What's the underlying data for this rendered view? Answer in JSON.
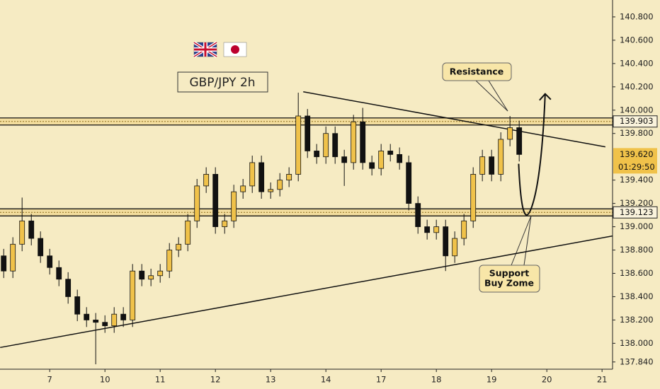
{
  "chart_data": {
    "type": "candlestick",
    "title": "GBP/JPY 2h",
    "x": [
      -0.833,
      -0.667,
      -0.5,
      -0.333,
      -0.167,
      0,
      0.167,
      0.333,
      0.5,
      0.667,
      0.833,
      1,
      1.167,
      1.333,
      1.5,
      1.667,
      1.833,
      2,
      2.167,
      2.333,
      2.5,
      2.667,
      2.833,
      3,
      3.167,
      3.333,
      3.5,
      3.667,
      3.833,
      4,
      4.167,
      4.333,
      4.5,
      4.667,
      4.833,
      5,
      5.167,
      5.333,
      5.5,
      5.667,
      5.833,
      6,
      6.167,
      6.333,
      6.5,
      6.667,
      6.833,
      7,
      7.167,
      7.333,
      7.5,
      7.667,
      7.833,
      8,
      8.167,
      8.333,
      8.5
    ],
    "open": [
      138.75,
      138.62,
      138.85,
      139.05,
      138.9,
      138.75,
      138.65,
      138.55,
      138.4,
      138.25,
      138.2,
      138.18,
      138.15,
      138.25,
      138.2,
      138.62,
      138.55,
      138.58,
      138.62,
      138.8,
      138.85,
      139.05,
      139.35,
      139.45,
      139.0,
      139.05,
      139.3,
      139.35,
      139.55,
      139.3,
      139.32,
      139.4,
      139.45,
      139.95,
      139.65,
      139.6,
      139.8,
      139.6,
      139.55,
      139.9,
      139.55,
      139.5,
      139.65,
      139.62,
      139.55,
      139.2,
      139.0,
      138.95,
      139.0,
      138.75,
      138.9,
      139.05,
      139.45,
      139.6,
      139.45,
      139.75,
      139.85
    ],
    "close": [
      138.62,
      138.85,
      139.05,
      138.9,
      138.75,
      138.65,
      138.55,
      138.4,
      138.25,
      138.2,
      138.18,
      138.15,
      138.25,
      138.2,
      138.62,
      138.55,
      138.58,
      138.62,
      138.8,
      138.85,
      139.05,
      139.35,
      139.45,
      139.0,
      139.05,
      139.3,
      139.35,
      139.55,
      139.3,
      139.32,
      139.4,
      139.45,
      139.95,
      139.65,
      139.6,
      139.8,
      139.6,
      139.55,
      139.9,
      139.55,
      139.5,
      139.65,
      139.62,
      139.55,
      139.2,
      139.0,
      138.95,
      139.0,
      138.75,
      138.9,
      139.05,
      139.45,
      139.6,
      139.45,
      139.75,
      139.85,
      139.62
    ],
    "high": [
      138.81,
      138.91,
      139.25,
      139.11,
      138.96,
      138.81,
      138.71,
      138.61,
      138.46,
      138.31,
      138.26,
      138.24,
      138.31,
      138.31,
      138.68,
      138.68,
      138.64,
      138.68,
      138.86,
      138.91,
      139.11,
      139.41,
      139.51,
      139.51,
      139.11,
      139.36,
      139.41,
      139.61,
      139.61,
      139.38,
      139.46,
      139.51,
      140.15,
      140.01,
      139.71,
      139.86,
      139.86,
      139.66,
      139.96,
      140.02,
      139.61,
      139.71,
      139.71,
      139.68,
      139.61,
      139.26,
      139.06,
      139.06,
      139.06,
      138.96,
      139.11,
      139.51,
      139.66,
      139.66,
      139.81,
      139.95,
      139.91
    ],
    "low": [
      138.56,
      138.56,
      138.79,
      138.84,
      138.69,
      138.59,
      138.49,
      138.34,
      138.19,
      138.14,
      137.82,
      138.09,
      138.09,
      138.14,
      138.14,
      138.49,
      138.49,
      138.52,
      138.56,
      138.74,
      138.79,
      138.99,
      139.29,
      138.94,
      138.94,
      138.99,
      139.24,
      139.29,
      139.24,
      139.24,
      139.26,
      139.34,
      139.39,
      139.59,
      139.54,
      139.54,
      139.54,
      139.35,
      139.49,
      139.49,
      139.44,
      139.44,
      139.56,
      139.49,
      139.14,
      138.94,
      138.89,
      138.89,
      138.62,
      138.69,
      138.84,
      138.99,
      139.39,
      139.39,
      139.39,
      139.69,
      139.56
    ],
    "up_color": "#f0c24a",
    "down_color": "#111111",
    "xlim": [
      -0.9,
      10.19
    ],
    "ylim": [
      137.79,
      140.945
    ],
    "xticks": [
      {
        "value": 0,
        "label": "7"
      },
      {
        "value": 1,
        "label": "10"
      },
      {
        "value": 2,
        "label": "11"
      },
      {
        "value": 3,
        "label": "12"
      },
      {
        "value": 4,
        "label": "13"
      },
      {
        "value": 5,
        "label": "14"
      },
      {
        "value": 6,
        "label": "17"
      },
      {
        "value": 7,
        "label": "18"
      },
      {
        "value": 8,
        "label": "19"
      },
      {
        "value": 9,
        "label": "20"
      },
      {
        "value": 10,
        "label": "21"
      }
    ],
    "yticks": [
      {
        "value": 140.8,
        "label": "140.800"
      },
      {
        "value": 140.6,
        "label": "140.600"
      },
      {
        "value": 140.4,
        "label": "140.400"
      },
      {
        "value": 140.2,
        "label": "140.200"
      },
      {
        "value": 140.0,
        "label": "140.000"
      },
      {
        "value": 139.8,
        "label": "139.800"
      },
      {
        "value": 139.4,
        "label": "139.400"
      },
      {
        "value": 139.2,
        "label": "139.200"
      },
      {
        "value": 139.0,
        "label": "139.000"
      },
      {
        "value": 138.8,
        "label": "138.800"
      },
      {
        "value": 138.6,
        "label": "138.600"
      },
      {
        "value": 138.4,
        "label": "138.400"
      },
      {
        "value": 138.2,
        "label": "138.200"
      },
      {
        "value": 138.0,
        "label": "138.000"
      },
      {
        "value": 137.84,
        "label": "137.840"
      }
    ],
    "levels": [
      {
        "value": 139.903,
        "label": "139.903"
      },
      {
        "value": 139.123,
        "label": "139.123"
      }
    ],
    "last_price": {
      "value": 139.62,
      "label": "139.620",
      "countdown": "01:29:50"
    },
    "trendlines": [
      {
        "x": [
          4.59,
          10.06
        ],
        "y": [
          140.158,
          139.685
        ]
      },
      {
        "x": [
          -0.897,
          10.19
        ],
        "y": [
          137.964,
          138.921
        ]
      }
    ],
    "projection": {
      "x": [
        8.49,
        8.65,
        8.97
      ],
      "y": [
        139.54,
        139.17,
        140.14
      ]
    },
    "annotations": [
      "Resistance",
      "Support",
      "Buy Zome"
    ]
  }
}
